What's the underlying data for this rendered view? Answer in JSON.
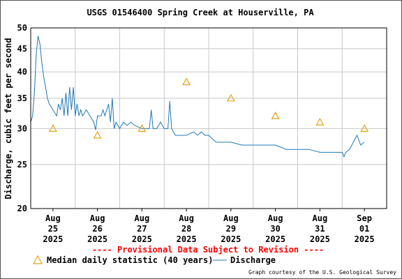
{
  "colors": {
    "frame": "#000000",
    "grid": "#c8c8c8",
    "discharge": "#1f78b4",
    "median": "#e6a21a",
    "provisional": "#ff0000",
    "text": "#000000"
  },
  "chart_data": {
    "type": "line",
    "title": "USGS 01546400 Spring Creek at Houserville, PA",
    "ylabel": "Discharge, cubic feet per second",
    "xlabel": "",
    "y_scale": "log",
    "ylim": [
      20,
      50
    ],
    "y_ticks": [
      20,
      25,
      30,
      35,
      40,
      45,
      50
    ],
    "x_domain": [
      "2025-08-24T12:00",
      "2025-09-01T12:00"
    ],
    "x_ticks": [
      {
        "date": "2025-08-25",
        "month": "Aug",
        "day": "25",
        "year": "2025"
      },
      {
        "date": "2025-08-26",
        "month": "Aug",
        "day": "26",
        "year": "2025"
      },
      {
        "date": "2025-08-27",
        "month": "Aug",
        "day": "27",
        "year": "2025"
      },
      {
        "date": "2025-08-28",
        "month": "Aug",
        "day": "28",
        "year": "2025"
      },
      {
        "date": "2025-08-29",
        "month": "Aug",
        "day": "29",
        "year": "2025"
      },
      {
        "date": "2025-08-30",
        "month": "Aug",
        "day": "30",
        "year": "2025"
      },
      {
        "date": "2025-08-31",
        "month": "Aug",
        "day": "31",
        "year": "2025"
      },
      {
        "date": "2025-09-01",
        "month": "Sep",
        "day": "01",
        "year": "2025"
      }
    ],
    "grid": true,
    "provisional_text": "---- Provisional Data Subject to Revision ----",
    "credit": "Graph courtesy of the U.S. Geological Survey",
    "legend": {
      "median_label": "Median daily statistic (40 years)",
      "discharge_label": "Discharge"
    },
    "series": [
      {
        "name": "Median daily statistic (40 years)",
        "kind": "marker-triangle",
        "points": [
          [
            "2025-08-25T00:00",
            30
          ],
          [
            "2025-08-26T00:00",
            29
          ],
          [
            "2025-08-27T00:00",
            30
          ],
          [
            "2025-08-28T00:00",
            38
          ],
          [
            "2025-08-29T00:00",
            35
          ],
          [
            "2025-08-30T00:00",
            32
          ],
          [
            "2025-08-31T00:00",
            31
          ],
          [
            "2025-09-01T00:00",
            30
          ]
        ]
      },
      {
        "name": "Discharge",
        "kind": "line",
        "points": [
          [
            "2025-08-24T12:00",
            31
          ],
          [
            "2025-08-24T13:00",
            32
          ],
          [
            "2025-08-24T14:00",
            36
          ],
          [
            "2025-08-24T15:00",
            44
          ],
          [
            "2025-08-24T16:00",
            48
          ],
          [
            "2025-08-24T17:00",
            46
          ],
          [
            "2025-08-24T18:00",
            42
          ],
          [
            "2025-08-24T19:00",
            39
          ],
          [
            "2025-08-24T20:00",
            37
          ],
          [
            "2025-08-24T21:00",
            35
          ],
          [
            "2025-08-24T22:00",
            34
          ],
          [
            "2025-08-25T00:00",
            33
          ],
          [
            "2025-08-25T02:00",
            32
          ],
          [
            "2025-08-25T03:00",
            34
          ],
          [
            "2025-08-25T04:00",
            33
          ],
          [
            "2025-08-25T05:00",
            35
          ],
          [
            "2025-08-25T06:00",
            32
          ],
          [
            "2025-08-25T07:00",
            36
          ],
          [
            "2025-08-25T08:00",
            32
          ],
          [
            "2025-08-25T09:00",
            37
          ],
          [
            "2025-08-25T10:00",
            33
          ],
          [
            "2025-08-25T11:00",
            37
          ],
          [
            "2025-08-25T12:00",
            32
          ],
          [
            "2025-08-25T13:00",
            34
          ],
          [
            "2025-08-25T14:00",
            32
          ],
          [
            "2025-08-25T15:00",
            33
          ],
          [
            "2025-08-25T16:00",
            32
          ],
          [
            "2025-08-25T18:00",
            33
          ],
          [
            "2025-08-25T20:00",
            32
          ],
          [
            "2025-08-25T22:00",
            31
          ],
          [
            "2025-08-25T23:00",
            29.8
          ],
          [
            "2025-08-26T00:00",
            32
          ],
          [
            "2025-08-26T02:00",
            32
          ],
          [
            "2025-08-26T03:00",
            33
          ],
          [
            "2025-08-26T04:00",
            32
          ],
          [
            "2025-08-26T06:00",
            34
          ],
          [
            "2025-08-26T07:00",
            31
          ],
          [
            "2025-08-26T08:00",
            35
          ],
          [
            "2025-08-26T09:00",
            30
          ],
          [
            "2025-08-26T10:00",
            31
          ],
          [
            "2025-08-26T12:00",
            30
          ],
          [
            "2025-08-26T14:00",
            31
          ],
          [
            "2025-08-26T16:00",
            30.5
          ],
          [
            "2025-08-26T18:00",
            31
          ],
          [
            "2025-08-26T20:00",
            30.5
          ],
          [
            "2025-08-27T00:00",
            30
          ],
          [
            "2025-08-27T04:00",
            30
          ],
          [
            "2025-08-27T05:00",
            33
          ],
          [
            "2025-08-27T06:00",
            30
          ],
          [
            "2025-08-27T08:00",
            30
          ],
          [
            "2025-08-27T10:00",
            31
          ],
          [
            "2025-08-27T12:00",
            30
          ],
          [
            "2025-08-27T14:00",
            30
          ],
          [
            "2025-08-27T15:00",
            34.5
          ],
          [
            "2025-08-27T16:00",
            30
          ],
          [
            "2025-08-27T18:00",
            29
          ],
          [
            "2025-08-28T00:00",
            29
          ],
          [
            "2025-08-28T04:00",
            29.5
          ],
          [
            "2025-08-28T06:00",
            29
          ],
          [
            "2025-08-28T08:00",
            29.5
          ],
          [
            "2025-08-28T10:00",
            29
          ],
          [
            "2025-08-28T12:00",
            29
          ],
          [
            "2025-08-28T16:00",
            28
          ],
          [
            "2025-08-29T00:00",
            28
          ],
          [
            "2025-08-29T06:00",
            27.6
          ],
          [
            "2025-08-29T12:00",
            27.6
          ],
          [
            "2025-08-30T00:00",
            27.6
          ],
          [
            "2025-08-30T06:00",
            27
          ],
          [
            "2025-08-30T12:00",
            27
          ],
          [
            "2025-08-30T18:00",
            27
          ],
          [
            "2025-08-31T00:00",
            26.6
          ],
          [
            "2025-08-31T06:00",
            26.6
          ],
          [
            "2025-08-31T12:00",
            26.6
          ],
          [
            "2025-08-31T13:00",
            26
          ],
          [
            "2025-08-31T14:00",
            26.6
          ],
          [
            "2025-08-31T16:00",
            27
          ],
          [
            "2025-08-31T18:00",
            28
          ],
          [
            "2025-08-31T20:00",
            29
          ],
          [
            "2025-08-31T22:00",
            27.6
          ],
          [
            "2025-09-01T00:00",
            28
          ]
        ]
      }
    ]
  }
}
